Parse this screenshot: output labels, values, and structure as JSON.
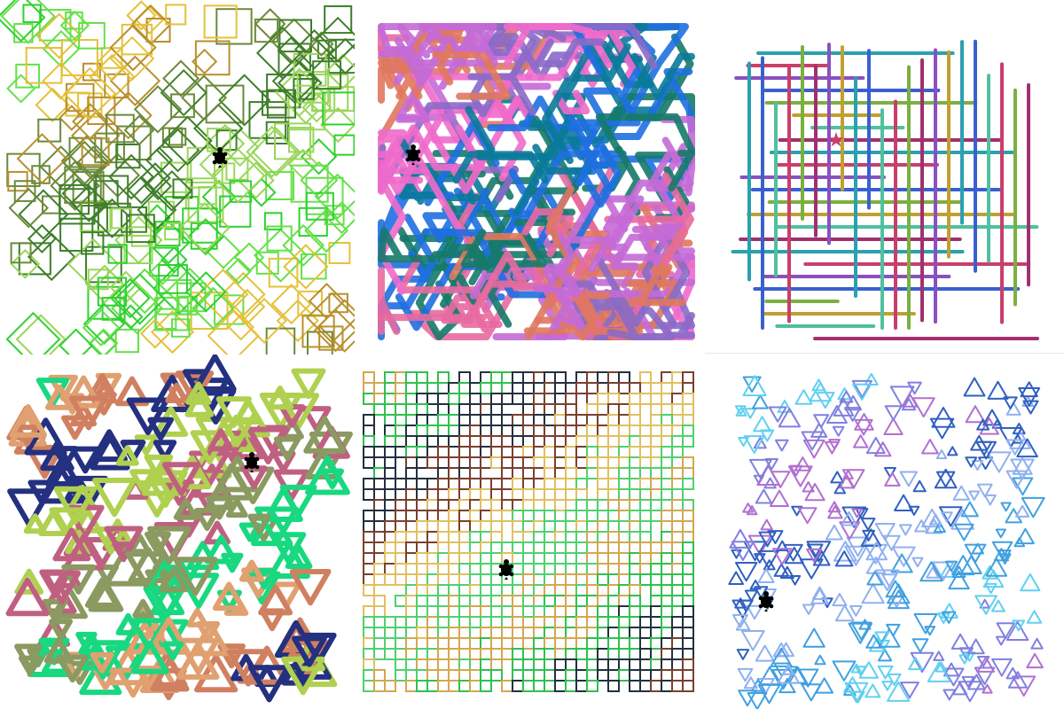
{
  "panels": [
    {
      "id": "turtle-diamond-squares",
      "shape": "diamond-square",
      "colors": [
        "#2fd12f",
        "#66e04a",
        "#e5c13a",
        "#b8902e",
        "#6b8a3a",
        "#3f7f2a",
        "#9ad65a"
      ],
      "strokeWidth": 2,
      "turtle_icon": "turtle-icon"
    },
    {
      "id": "turtle-thick-strokes",
      "shape": "thick-path",
      "colors": [
        "#e86aa0",
        "#c46ad6",
        "#e0785e",
        "#8a6ac8",
        "#f06acb",
        "#0a7a9a",
        "#1e6fe0",
        "#157a6a"
      ],
      "strokeWidth": 8,
      "turtle_icon": "turtle-icon"
    },
    {
      "id": "turtle-grid-lines",
      "shape": "orthogonal-grid",
      "colors": [
        "#2aa0b0",
        "#c8406a",
        "#8a50c0",
        "#3a60d0",
        "#7ab040",
        "#c0a030",
        "#50c0a0",
        "#a03070"
      ],
      "strokeWidth": 4,
      "turtle_icon": "star-turtle-icon"
    },
    {
      "id": "turtle-triangles-thick",
      "shape": "triangle",
      "colors": [
        "#18d880",
        "#e0a070",
        "#d08060",
        "#243080",
        "#b0d050",
        "#c06080",
        "#8a9a60"
      ],
      "strokeWidth": 6,
      "turtle_icon": "turtle-icon"
    },
    {
      "id": "turtle-square-grid",
      "shape": "square-grid",
      "colors": [
        "#d4a850",
        "#30c050",
        "#233040",
        "#7a4030",
        "#e0c060",
        "#50d070"
      ],
      "strokeWidth": 2,
      "turtle_icon": "turtle-icon"
    },
    {
      "id": "turtle-small-triangles",
      "shape": "small-triangle",
      "colors": [
        "#40a0e0",
        "#60d0f0",
        "#8080e0",
        "#b070d0",
        "#3060c0",
        "#90b0f0"
      ],
      "strokeWidth": 2,
      "turtle_icon": "turtle-icon"
    }
  ]
}
